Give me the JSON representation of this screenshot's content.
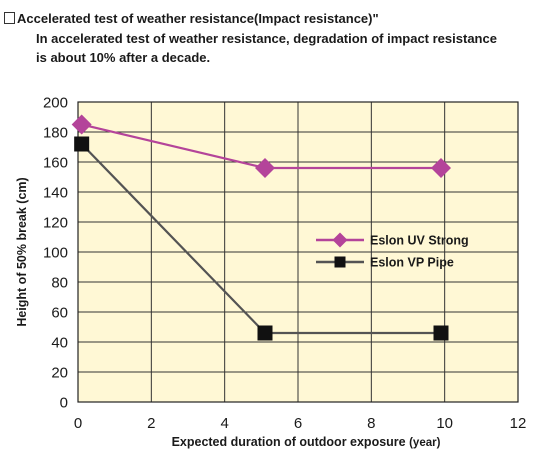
{
  "header": {
    "title": "Accelerated test of weather resistance(Impact resistance)\"",
    "description": "In accelerated test of weather resistance, degradation of impact resistance is about 10% after a decade."
  },
  "chart_data": {
    "type": "line",
    "xlabel": "Expected duration of outdoor exposure",
    "xunit": "(year)",
    "ylabel": "Height of 50% break (cm)",
    "xlim": [
      0,
      12
    ],
    "ylim": [
      0,
      200
    ],
    "xticks": [
      0,
      2,
      4,
      6,
      8,
      10,
      12
    ],
    "yticks": [
      0,
      20,
      40,
      60,
      80,
      100,
      120,
      140,
      160,
      180,
      200
    ],
    "grid": true,
    "legend_position": "right",
    "colors": {
      "plot_background": "#fff8d5",
      "grid": "#333333"
    },
    "series": [
      {
        "name": "Eslon UV Strong",
        "marker": "diamond",
        "color": "#b4449a",
        "x": [
          0.1,
          5.1,
          9.9
        ],
        "y": [
          185,
          156,
          156
        ]
      },
      {
        "name": "Eslon VP Pipe",
        "marker": "square",
        "color": "#545454",
        "marker_color": "#111111",
        "x": [
          0.1,
          5.1,
          9.9
        ],
        "y": [
          172,
          46,
          46
        ]
      }
    ]
  }
}
